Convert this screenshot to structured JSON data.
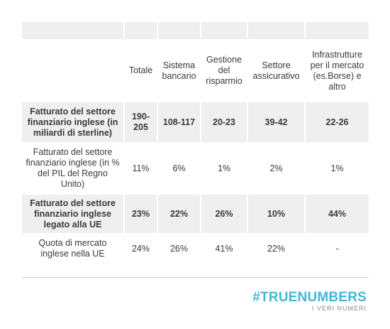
{
  "header": [
    "",
    "Totale",
    "Sistema bancario",
    "Gestione del risparmio",
    "Settore assicurativo",
    "Infrastrutture per il mercato (es.Borse) e altro"
  ],
  "rows": [
    [
      "Fatturato del settore finanziario inglese (in miliardi di sterline)",
      "190-205",
      "108-117",
      "20-23",
      "39-42",
      "22-26"
    ],
    [
      "Fatturato del settore finanziario inglese (in % del PIL del Regno Unito)",
      "11%",
      "6%",
      "1%",
      "2%",
      "1%"
    ],
    [
      "Fatturato del settore finanziario inglese legato alla UE",
      "23%",
      "22%",
      "26%",
      "10%",
      "44%"
    ],
    [
      "Quota di mercato inglese nella UE",
      "24%",
      "26%",
      "41%",
      "22%",
      "-"
    ]
  ],
  "brand": {
    "name": "#TRUENUMBERS",
    "tagline": "I VERI NUMERI"
  },
  "colors": {
    "shade": "#efefef",
    "brand": "#3fb8d6"
  }
}
